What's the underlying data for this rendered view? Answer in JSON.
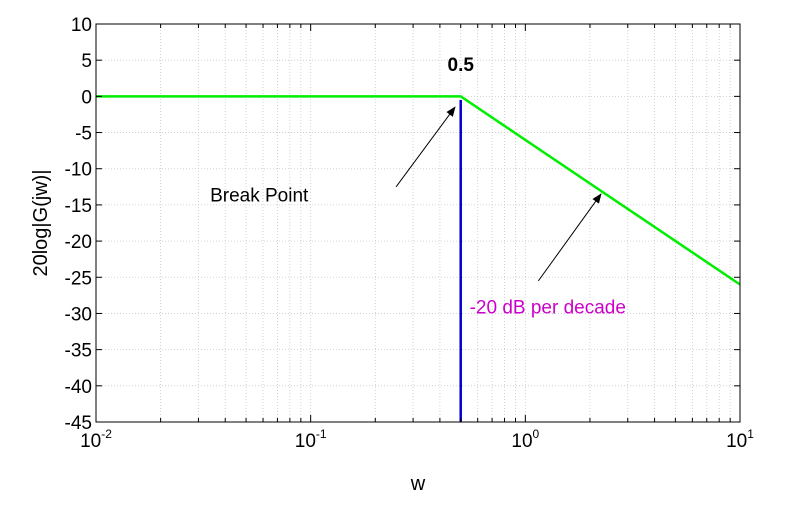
{
  "chart_data": {
    "type": "line",
    "xscale": "log",
    "xlim": [
      0.01,
      10
    ],
    "ylim": [
      -45,
      10
    ],
    "grid": true,
    "xlabel": "w",
    "ylabel": "20log|G(jw)|",
    "yticks": [
      10,
      5,
      0,
      -5,
      -10,
      -15,
      -20,
      -25,
      -30,
      -35,
      -40,
      -45
    ],
    "xticks": [
      {
        "value": 0.01,
        "base": "10",
        "exp": "-2"
      },
      {
        "value": 0.1,
        "base": "10",
        "exp": "-1"
      },
      {
        "value": 1,
        "base": "10",
        "exp": "0"
      },
      {
        "value": 10,
        "base": "10",
        "exp": "1"
      }
    ],
    "series": [
      {
        "color": "#00ee00",
        "x": [
          0.01,
          0.5,
          10
        ],
        "y": [
          0,
          0,
          -26
        ]
      }
    ],
    "vline": {
      "x": 0.5,
      "y": [
        -45,
        -0.5
      ],
      "color": "#0000cc"
    },
    "annotations": [
      {
        "text": "0.5",
        "x": 0.5,
        "y": 3.5,
        "color": "#000000",
        "anchor": "middle",
        "weight": "bold"
      },
      {
        "text": "Break Point",
        "x": 0.034,
        "y": -14.5,
        "color": "#000000",
        "anchor": "start",
        "arrow_from": [
          0.25,
          -12.5
        ],
        "arrow_to": [
          0.47,
          -1.5
        ]
      },
      {
        "text": "-20 dB per decade",
        "x": 0.55,
        "y": -30,
        "color": "#cc00cc",
        "anchor": "start",
        "arrow_from": [
          1.15,
          -25.5
        ],
        "arrow_to": [
          2.25,
          -13.5
        ]
      }
    ]
  }
}
